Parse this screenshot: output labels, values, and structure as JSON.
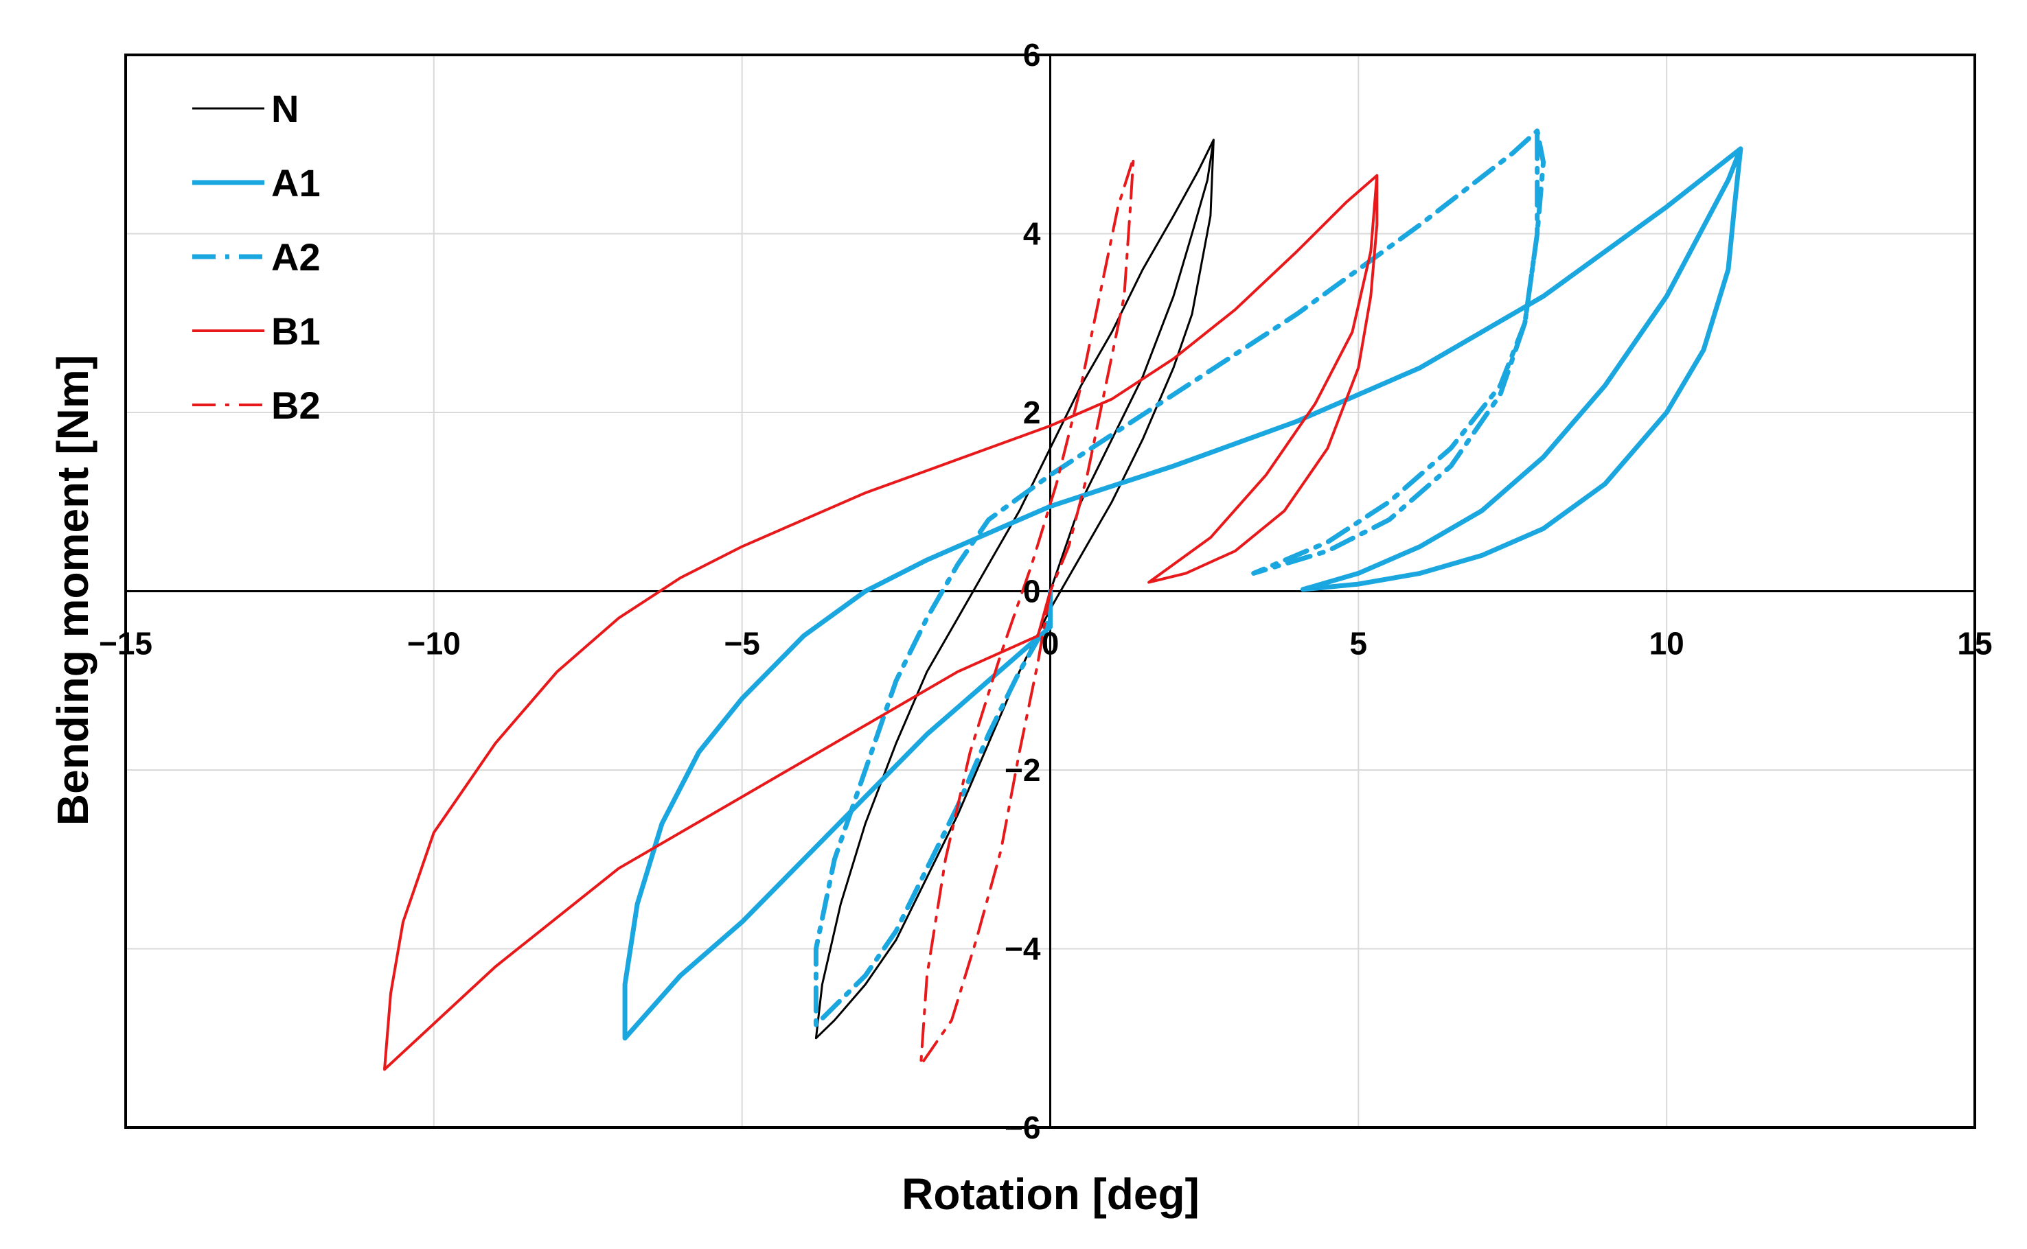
{
  "chart_data": {
    "type": "line",
    "xlabel": "Rotation [deg]",
    "ylabel": "Bending moment [Nm]",
    "xlim": [
      -15,
      15
    ],
    "ylim": [
      -6,
      6
    ],
    "xticks": [
      -15,
      -10,
      -5,
      0,
      5,
      10,
      15
    ],
    "yticks": [
      -6,
      -4,
      -2,
      0,
      2,
      4,
      6
    ],
    "xtick_labels": [
      "−15",
      "−10",
      "−5",
      "0",
      "5",
      "10",
      "15"
    ],
    "ytick_labels": [
      "−6",
      "−4",
      "−2",
      "0",
      "2",
      "4",
      "6"
    ],
    "grid": true,
    "legend_position": "top-left",
    "series": [
      {
        "name": "N",
        "color": "#000000",
        "style": "solid",
        "points": [
          [
            0,
            0
          ],
          [
            0.5,
            1.0
          ],
          [
            1.0,
            1.7
          ],
          [
            1.5,
            2.4
          ],
          [
            2.0,
            3.3
          ],
          [
            2.3,
            4.0
          ],
          [
            2.55,
            4.6
          ],
          [
            2.65,
            5.05
          ],
          [
            2.6,
            4.2
          ],
          [
            2.3,
            3.1
          ],
          [
            2.0,
            2.5
          ],
          [
            1.5,
            1.7
          ],
          [
            1.0,
            1.0
          ],
          [
            0.5,
            0.4
          ],
          [
            0,
            -0.2
          ],
          [
            -0.5,
            -0.9
          ],
          [
            -1.0,
            -1.7
          ],
          [
            -1.5,
            -2.5
          ],
          [
            -2.0,
            -3.2
          ],
          [
            -2.5,
            -3.9
          ],
          [
            -3.0,
            -4.4
          ],
          [
            -3.5,
            -4.8
          ],
          [
            -3.8,
            -5.0
          ],
          [
            -3.7,
            -4.4
          ],
          [
            -3.4,
            -3.5
          ],
          [
            -3.0,
            -2.6
          ],
          [
            -2.5,
            -1.7
          ],
          [
            -2.0,
            -0.9
          ],
          [
            -1.5,
            -0.3
          ],
          [
            -1.0,
            0.3
          ],
          [
            -0.5,
            0.9
          ],
          [
            0,
            1.6
          ],
          [
            0.5,
            2.3
          ],
          [
            1.0,
            2.9
          ],
          [
            1.5,
            3.6
          ],
          [
            2.0,
            4.2
          ],
          [
            2.4,
            4.7
          ],
          [
            2.65,
            5.05
          ]
        ]
      },
      {
        "name": "A1",
        "color": "#1aa7e0",
        "style": "solid",
        "points": [
          [
            0,
            0
          ],
          [
            0,
            -0.4
          ],
          [
            -1.0,
            -1.0
          ],
          [
            -2.0,
            -1.6
          ],
          [
            -3.0,
            -2.3
          ],
          [
            -4.0,
            -3.0
          ],
          [
            -5.0,
            -3.7
          ],
          [
            -6.0,
            -4.3
          ],
          [
            -6.9,
            -5.0
          ],
          [
            -6.9,
            -4.4
          ],
          [
            -6.7,
            -3.5
          ],
          [
            -6.3,
            -2.6
          ],
          [
            -5.7,
            -1.8
          ],
          [
            -5.0,
            -1.2
          ],
          [
            -4.0,
            -0.5
          ],
          [
            -3.0,
            0.0
          ],
          [
            -2.0,
            0.35
          ],
          [
            -1.0,
            0.65
          ],
          [
            0,
            0.95
          ],
          [
            2.0,
            1.4
          ],
          [
            4.0,
            1.9
          ],
          [
            6.0,
            2.5
          ],
          [
            8.0,
            3.3
          ],
          [
            10.0,
            4.3
          ],
          [
            11.2,
            4.95
          ],
          [
            11.1,
            4.3
          ],
          [
            11.0,
            3.6
          ],
          [
            10.6,
            2.7
          ],
          [
            10.0,
            2.0
          ],
          [
            9.0,
            1.2
          ],
          [
            8.0,
            0.7
          ],
          [
            7.0,
            0.4
          ],
          [
            6.0,
            0.2
          ],
          [
            5.0,
            0.08
          ],
          [
            4.1,
            0.02
          ],
          [
            5.0,
            0.2
          ],
          [
            6.0,
            0.5
          ],
          [
            7.0,
            0.9
          ],
          [
            8.0,
            1.5
          ],
          [
            9.0,
            2.3
          ],
          [
            10.0,
            3.3
          ],
          [
            11.0,
            4.6
          ],
          [
            11.2,
            4.95
          ]
        ]
      },
      {
        "name": "A2",
        "color": "#1aa7e0",
        "style": "dashdot",
        "points": [
          [
            0,
            0
          ],
          [
            0,
            -0.3
          ],
          [
            -0.5,
            -0.9
          ],
          [
            -1.0,
            -1.6
          ],
          [
            -1.5,
            -2.4
          ],
          [
            -2.0,
            -3.1
          ],
          [
            -2.5,
            -3.8
          ],
          [
            -3.0,
            -4.3
          ],
          [
            -3.8,
            -4.85
          ],
          [
            -3.8,
            -4.0
          ],
          [
            -3.5,
            -3.0
          ],
          [
            -3.0,
            -2.0
          ],
          [
            -2.5,
            -1.0
          ],
          [
            -2.0,
            -0.3
          ],
          [
            -1.5,
            0.3
          ],
          [
            -1.0,
            0.8
          ],
          [
            0,
            1.3
          ],
          [
            2.0,
            2.2
          ],
          [
            4.0,
            3.1
          ],
          [
            6.0,
            4.1
          ],
          [
            7.5,
            4.9
          ],
          [
            7.9,
            5.15
          ],
          [
            8.0,
            4.8
          ],
          [
            7.9,
            4.0
          ],
          [
            7.7,
            3.0
          ],
          [
            7.3,
            2.2
          ],
          [
            6.5,
            1.4
          ],
          [
            5.5,
            0.8
          ],
          [
            4.5,
            0.45
          ],
          [
            3.3,
            0.2
          ],
          [
            4.5,
            0.55
          ],
          [
            5.5,
            1.0
          ],
          [
            6.5,
            1.6
          ],
          [
            7.3,
            2.3
          ],
          [
            7.7,
            3.0
          ],
          [
            7.9,
            4.0
          ],
          [
            7.9,
            5.15
          ]
        ]
      },
      {
        "name": "B1",
        "color": "#e8191b",
        "style": "solid",
        "points": [
          [
            0,
            0
          ],
          [
            -0.2,
            -0.5
          ],
          [
            -1.5,
            -0.9
          ],
          [
            -3.0,
            -1.5
          ],
          [
            -5.0,
            -2.3
          ],
          [
            -7.0,
            -3.1
          ],
          [
            -9.0,
            -4.2
          ],
          [
            -10.8,
            -5.35
          ],
          [
            -10.7,
            -4.5
          ],
          [
            -10.5,
            -3.7
          ],
          [
            -10.0,
            -2.7
          ],
          [
            -9.0,
            -1.7
          ],
          [
            -8.0,
            -0.9
          ],
          [
            -7.0,
            -0.3
          ],
          [
            -6.0,
            0.15
          ],
          [
            -5.0,
            0.5
          ],
          [
            -4.0,
            0.8
          ],
          [
            -3.0,
            1.1
          ],
          [
            -2.0,
            1.35
          ],
          [
            -1.0,
            1.6
          ],
          [
            0,
            1.85
          ],
          [
            1.0,
            2.15
          ],
          [
            2.0,
            2.6
          ],
          [
            3.0,
            3.15
          ],
          [
            4.0,
            3.8
          ],
          [
            4.8,
            4.35
          ],
          [
            5.3,
            4.65
          ],
          [
            5.3,
            4.1
          ],
          [
            5.2,
            3.3
          ],
          [
            5.0,
            2.5
          ],
          [
            4.5,
            1.6
          ],
          [
            3.8,
            0.9
          ],
          [
            3.0,
            0.45
          ],
          [
            2.2,
            0.2
          ],
          [
            1.6,
            0.1
          ],
          [
            2.6,
            0.6
          ],
          [
            3.5,
            1.3
          ],
          [
            4.3,
            2.1
          ],
          [
            4.9,
            2.9
          ],
          [
            5.2,
            3.8
          ],
          [
            5.3,
            4.65
          ]
        ]
      },
      {
        "name": "B2",
        "color": "#e8191b",
        "style": "dashdot",
        "points": [
          [
            0,
            0
          ],
          [
            -0.2,
            -0.8
          ],
          [
            -0.5,
            -1.8
          ],
          [
            -0.8,
            -2.9
          ],
          [
            -1.2,
            -3.9
          ],
          [
            -1.6,
            -4.8
          ],
          [
            -2.1,
            -5.3
          ],
          [
            -2.0,
            -4.3
          ],
          [
            -1.7,
            -3.0
          ],
          [
            -1.3,
            -1.8
          ],
          [
            -0.8,
            -0.7
          ],
          [
            -0.3,
            0.3
          ],
          [
            0.1,
            1.2
          ],
          [
            0.5,
            2.3
          ],
          [
            0.8,
            3.3
          ],
          [
            1.1,
            4.3
          ],
          [
            1.35,
            4.85
          ],
          [
            1.3,
            4.3
          ],
          [
            1.2,
            3.3
          ],
          [
            0.9,
            2.3
          ],
          [
            0.6,
            1.3
          ],
          [
            0.3,
            0.5
          ],
          [
            0,
            0
          ]
        ]
      }
    ]
  }
}
